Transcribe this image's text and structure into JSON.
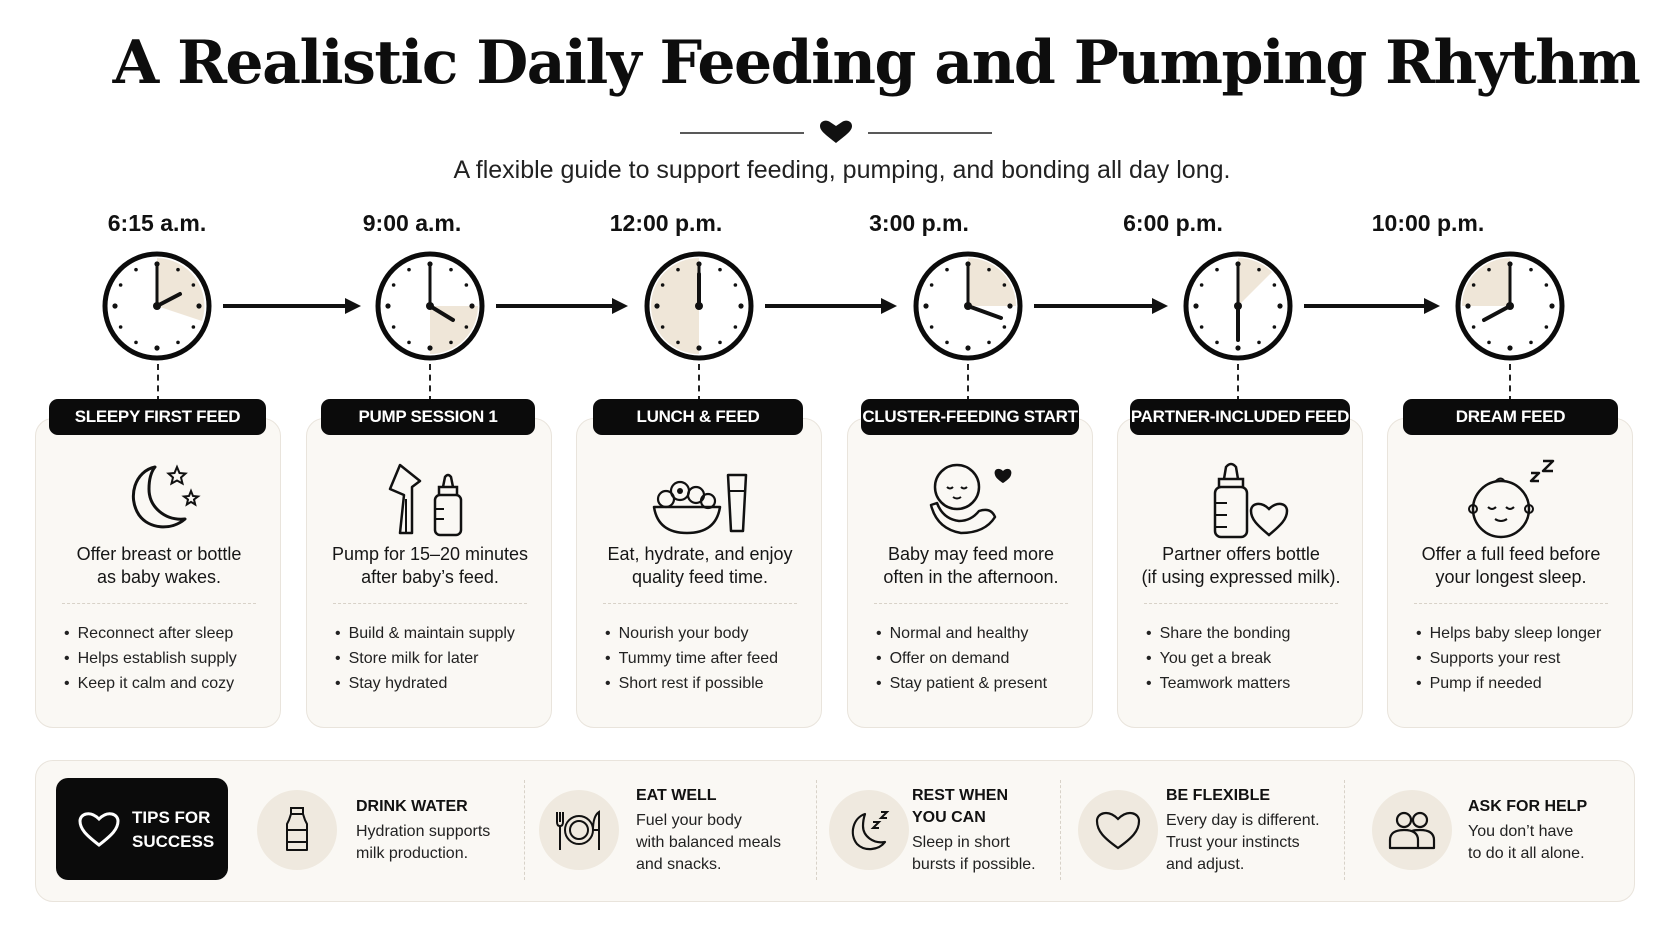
{
  "header": {
    "title": "A Realistic Daily Feeding and Pumping Rhythm",
    "subtitle": "A flexible guide to support feeding, pumping, and bonding all day long."
  },
  "timeline": [
    {
      "time": "6:15 a.m.",
      "label": "SLEEPY FIRST FEED",
      "icon": "moon-stars-icon",
      "desc": [
        "Offer breast or bottle",
        "as baby wakes."
      ],
      "bullets": [
        "Reconnect after sleep",
        "Helps establish supply",
        "Keep it calm and cozy"
      ]
    },
    {
      "time": "9:00 a.m.",
      "label": "PUMP SESSION 1",
      "icon": "breast-pump-icon",
      "desc": [
        "Pump for 15–20 minutes",
        "after baby’s feed."
      ],
      "bullets": [
        "Build & maintain supply",
        "Store milk for later",
        "Stay hydrated"
      ]
    },
    {
      "time": "12:00 p.m.",
      "label": "LUNCH & FEED",
      "icon": "salad-bowl-icon",
      "desc": [
        "Eat, hydrate, and enjoy",
        "quality feed time."
      ],
      "bullets": [
        "Nourish your body",
        "Tummy time after feed",
        "Short rest if possible"
      ]
    },
    {
      "time": "3:00 p.m.",
      "label": "CLUSTER-FEEDING START",
      "icon": "held-baby-icon",
      "desc": [
        "Baby may feed more",
        "often in the afternoon."
      ],
      "bullets": [
        "Normal and healthy",
        "Offer on demand",
        "Stay patient & present"
      ]
    },
    {
      "time": "6:00 p.m.",
      "label": "PARTNER-INCLUDED FEED",
      "icon": "bottle-heart-icon",
      "desc": [
        "Partner offers bottle",
        "(if using expressed milk)."
      ],
      "bullets": [
        "Share the bonding",
        "You get a break",
        "Teamwork matters"
      ]
    },
    {
      "time": "10:00 p.m.",
      "label": "DREAM FEED",
      "icon": "sleeping-baby-icon",
      "desc": [
        "Offer a full feed before",
        "your longest sleep."
      ],
      "bullets": [
        "Helps baby sleep longer",
        "Supports your rest",
        "Pump if needed"
      ]
    }
  ],
  "tips": {
    "badge": [
      "TIPS FOR",
      "SUCCESS"
    ],
    "items": [
      {
        "icon": "water-bottle-icon",
        "title": [
          "DRINK WATER"
        ],
        "text": [
          "Hydration supports",
          "milk production."
        ]
      },
      {
        "icon": "plate-cutlery-icon",
        "title": [
          "EAT WELL"
        ],
        "text": [
          "Fuel your body",
          "with balanced meals",
          "and snacks."
        ]
      },
      {
        "icon": "moon-zz-icon",
        "title": [
          "REST WHEN",
          "YOU CAN"
        ],
        "text": [
          "Sleep in short",
          "bursts if possible."
        ]
      },
      {
        "icon": "heart-icon",
        "title": [
          "BE FLEXIBLE"
        ],
        "text": [
          "Every day is different.",
          "Trust your instincts",
          "and adjust."
        ]
      },
      {
        "icon": "people-icon",
        "title": [
          "ASK FOR HELP"
        ],
        "text": [
          "You don’t have",
          "to do it all alone."
        ]
      }
    ]
  },
  "colors": {
    "ink": "#0b0b0b",
    "card": "#faf8f4",
    "accent_fill": "#efe6d8"
  }
}
